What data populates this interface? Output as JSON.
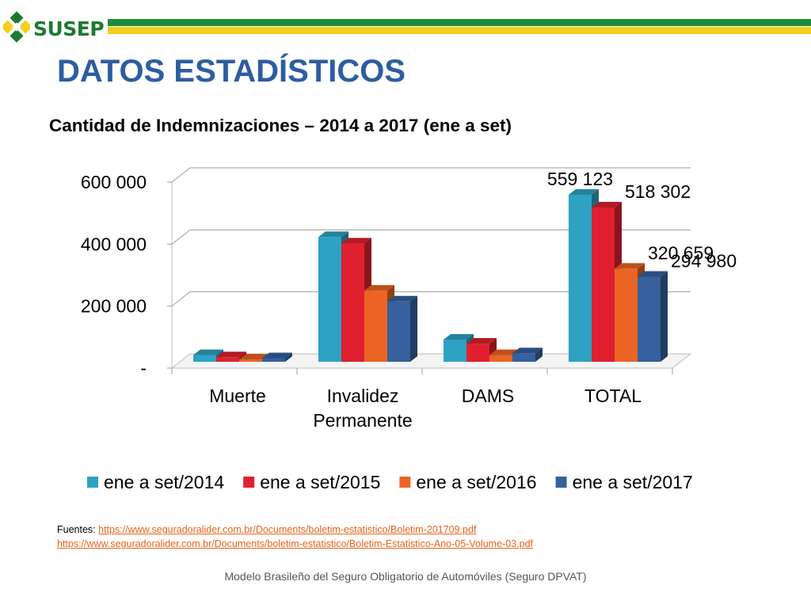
{
  "header": {
    "logo_text": "SUSEP",
    "page_title": "DATOS ESTADÍSTICOS"
  },
  "colors": {
    "title": "#2d5da0",
    "stripe_green": "#1e8a3b",
    "stripe_yellow": "#f2cf1b",
    "logo_green": "#1d7a2f",
    "link": "#e8641b"
  },
  "chart_data": {
    "type": "bar",
    "style": "3d-clustered-column",
    "title": "Cantidad de Indemnizaciones – 2014 a 2017 (ene a set)",
    "categories": [
      "Muerte",
      "Invalidez Permanente",
      "DAMS",
      "TOTAL"
    ],
    "category_lines": [
      [
        "Muerte"
      ],
      [
        "Invalidez",
        "Permanente"
      ],
      [
        "DAMS"
      ],
      [
        "TOTAL"
      ]
    ],
    "series": [
      {
        "name": "ene a set/2014",
        "color": "#2ea2c3",
        "values": [
          42000,
          423000,
          92000,
          559123
        ]
      },
      {
        "name": "ene a set/2015",
        "color": "#e0202f",
        "values": [
          35000,
          402000,
          79000,
          518302
        ]
      },
      {
        "name": "ene a set/2016",
        "color": "#ec6424",
        "values": [
          28000,
          250000,
          42000,
          320659
        ]
      },
      {
        "name": "ene a set/2017",
        "color": "#36609e",
        "values": [
          32000,
          215000,
          48000,
          294980
        ]
      }
    ],
    "ylim": [
      0,
      600000
    ],
    "yticks": [
      0,
      200000,
      400000,
      600000
    ],
    "ytick_labels": [
      "-",
      "200 000",
      "400 000",
      "600 000"
    ],
    "data_labels": {
      "category": "TOTAL",
      "texts": [
        "559 123",
        "518 302",
        "320 659",
        "294 980"
      ]
    },
    "grid": true,
    "legend": "bottom"
  },
  "sources": {
    "label": "Fuentes:",
    "links": [
      "https://www.seguradoralider.com.br/Documents/boletim-estatistico/Boletim-201709.pdf",
      "https://www.seguradoralider.com.br/Documents/boletim-estatistico/Boletim-Estatistico-Ano-05-Volume-03.pdf"
    ]
  },
  "footer": {
    "text": "Modelo Brasileño del Seguro Obligatorio de Automóviles (Seguro DPVAT)"
  }
}
